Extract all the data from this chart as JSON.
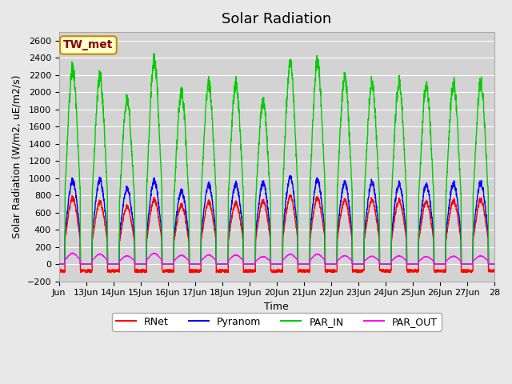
{
  "title": "Solar Radiation",
  "ylabel": "Solar Radiation (W/m2, uE/m2/s)",
  "xlabel": "Time",
  "ylim": [
    -200,
    2700
  ],
  "yticks": [
    -200,
    0,
    200,
    400,
    600,
    800,
    1000,
    1200,
    1400,
    1600,
    1800,
    2000,
    2200,
    2400,
    2600
  ],
  "xtick_labels": [
    "Jun",
    "13Jun",
    "14Jun",
    "15Jun",
    "16Jun",
    "17Jun",
    "18Jun",
    "19Jun",
    "20Jun",
    "21Jun",
    "22Jun",
    "23Jun",
    "24Jun",
    "25Jun",
    "26Jun",
    "27Jun",
    "28"
  ],
  "xtick_positions": [
    12,
    13,
    14,
    15,
    16,
    17,
    18,
    19,
    20,
    21,
    22,
    23,
    24,
    25,
    26,
    27,
    28
  ],
  "legend_labels": [
    "RNet",
    "Pyranom",
    "PAR_IN",
    "PAR_OUT"
  ],
  "legend_colors": [
    "#ff0000",
    "#0000ff",
    "#00cc00",
    "#ff00ff"
  ],
  "station_label": "TW_met",
  "fig_bg_color": "#e8e8e8",
  "plot_bg_color": "#d3d3d3",
  "grid_color": "#ffffff",
  "line_width": 1.0,
  "par_in_peaks": [
    2370,
    2270,
    2000,
    2470,
    2070,
    2190,
    2190,
    1960,
    2430,
    2460,
    2250,
    2200,
    2200,
    2160,
    2190,
    2200
  ],
  "par_out_peaks": [
    130,
    120,
    100,
    130,
    105,
    110,
    110,
    90,
    120,
    120,
    100,
    95,
    100,
    90,
    95,
    100
  ],
  "pyranom_peaks": [
    1010,
    1020,
    920,
    1010,
    880,
    960,
    970,
    980,
    1050,
    1020,
    980,
    995,
    970,
    960,
    980,
    985
  ],
  "rnet_peaks": [
    800,
    750,
    700,
    780,
    710,
    750,
    740,
    760,
    820,
    800,
    770,
    780,
    770,
    755,
    770,
    780
  ],
  "rnet_night": -80,
  "n_days": 16,
  "pts_per_day": 144
}
